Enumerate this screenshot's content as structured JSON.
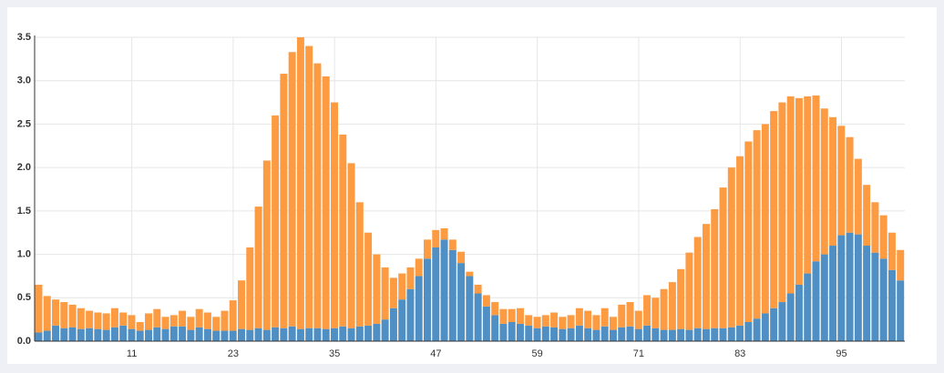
{
  "chart_data": {
    "type": "stacked-bar",
    "categories": [
      null,
      null,
      null,
      null,
      null,
      null,
      null,
      null,
      null,
      null,
      null,
      "11",
      null,
      null,
      null,
      null,
      null,
      null,
      null,
      null,
      null,
      null,
      null,
      "23",
      null,
      null,
      null,
      null,
      null,
      null,
      null,
      null,
      null,
      null,
      null,
      "35",
      null,
      null,
      null,
      null,
      null,
      null,
      null,
      null,
      null,
      null,
      null,
      "47",
      null,
      null,
      null,
      null,
      null,
      null,
      null,
      null,
      null,
      null,
      null,
      "59",
      null,
      null,
      null,
      null,
      null,
      null,
      null,
      null,
      null,
      null,
      null,
      "71",
      null,
      null,
      null,
      null,
      null,
      null,
      null,
      null,
      null,
      null,
      null,
      "83",
      null,
      null,
      null,
      null,
      null,
      null,
      null,
      null,
      null,
      null,
      null,
      "95",
      null,
      null,
      null,
      null,
      null,
      null,
      null
    ],
    "series": [
      {
        "color": "#4f8fc3",
        "values": [
          0.1,
          0.12,
          0.18,
          0.15,
          0.16,
          0.14,
          0.15,
          0.14,
          0.13,
          0.16,
          0.18,
          0.14,
          0.12,
          0.13,
          0.16,
          0.14,
          0.17,
          0.17,
          0.13,
          0.16,
          0.14,
          0.12,
          0.12,
          0.12,
          0.14,
          0.13,
          0.15,
          0.13,
          0.16,
          0.15,
          0.17,
          0.14,
          0.15,
          0.15,
          0.14,
          0.15,
          0.17,
          0.15,
          0.17,
          0.18,
          0.2,
          0.25,
          0.38,
          0.48,
          0.6,
          0.75,
          0.95,
          1.08,
          1.17,
          1.05,
          0.9,
          0.75,
          0.55,
          0.4,
          0.3,
          0.2,
          0.22,
          0.2,
          0.18,
          0.15,
          0.17,
          0.16,
          0.14,
          0.15,
          0.18,
          0.15,
          0.13,
          0.17,
          0.13,
          0.16,
          0.17,
          0.14,
          0.18,
          0.15,
          0.13,
          0.13,
          0.14,
          0.13,
          0.15,
          0.14,
          0.15,
          0.15,
          0.16,
          0.18,
          0.22,
          0.26,
          0.32,
          0.38,
          0.45,
          0.55,
          0.65,
          0.78,
          0.92,
          1.0,
          1.1,
          1.22,
          1.25,
          1.23,
          1.1,
          1.02,
          0.95,
          0.82,
          0.7
        ]
      },
      {
        "color": "#fd9b42",
        "values": [
          0.55,
          0.4,
          0.3,
          0.3,
          0.26,
          0.24,
          0.2,
          0.19,
          0.19,
          0.22,
          0.15,
          0.16,
          0.1,
          0.19,
          0.21,
          0.14,
          0.13,
          0.18,
          0.15,
          0.21,
          0.19,
          0.16,
          0.23,
          0.35,
          0.56,
          0.95,
          1.4,
          1.95,
          2.44,
          2.93,
          3.16,
          3.36,
          3.25,
          3.05,
          2.91,
          2.6,
          2.21,
          1.9,
          1.43,
          1.07,
          0.8,
          0.6,
          0.35,
          0.3,
          0.25,
          0.2,
          0.22,
          0.2,
          0.13,
          0.12,
          0.13,
          0.05,
          0.1,
          0.13,
          0.15,
          0.17,
          0.15,
          0.18,
          0.12,
          0.13,
          0.13,
          0.17,
          0.14,
          0.15,
          0.2,
          0.2,
          0.17,
          0.21,
          0.15,
          0.26,
          0.28,
          0.21,
          0.35,
          0.35,
          0.47,
          0.55,
          0.69,
          0.89,
          1.05,
          1.21,
          1.37,
          1.62,
          1.84,
          1.95,
          2.08,
          2.17,
          2.18,
          2.27,
          2.3,
          2.27,
          2.15,
          2.04,
          1.91,
          1.68,
          1.48,
          1.26,
          1.1,
          0.87,
          0.7,
          0.58,
          0.5,
          0.43,
          0.35
        ]
      }
    ],
    "ylim": [
      0,
      3.5
    ],
    "yticks": [
      {
        "value": 0,
        "label": "0.0"
      },
      0.5,
      {
        "value": 1,
        "label": "1.0"
      },
      1.5,
      {
        "value": 2,
        "label": "2.0"
      },
      2.5,
      {
        "value": 3,
        "label": "3.0"
      },
      3.5
    ],
    "grid": true
  }
}
